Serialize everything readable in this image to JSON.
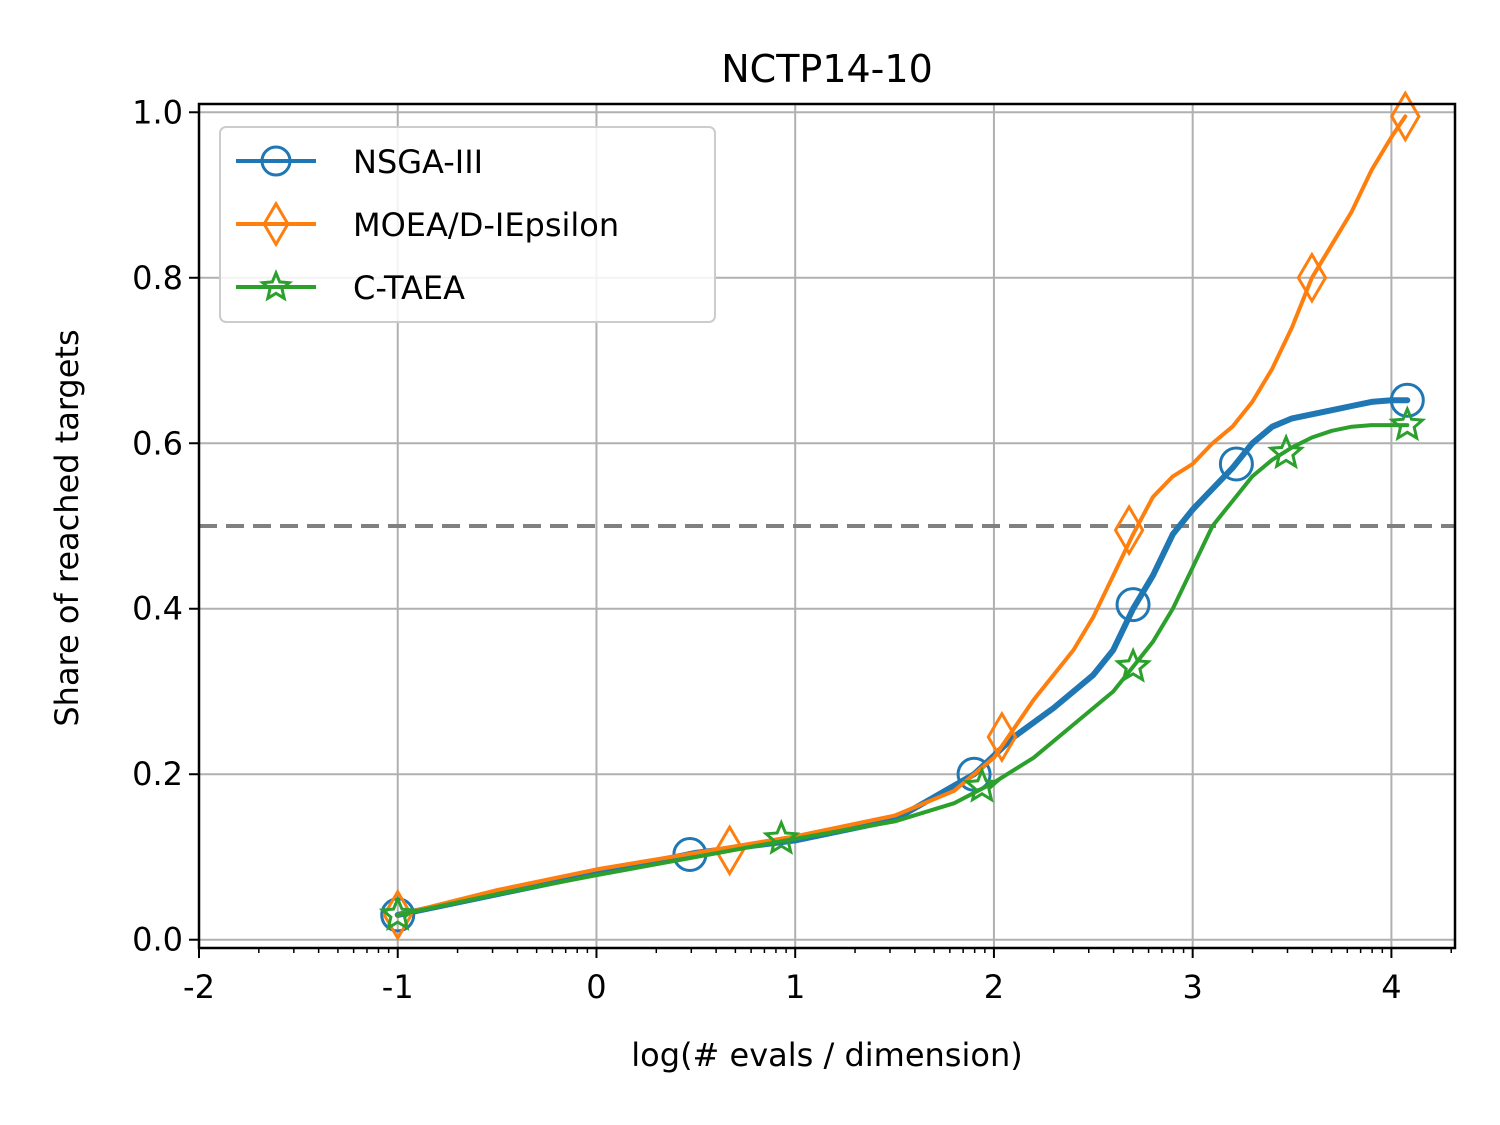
{
  "chart_data": {
    "type": "line",
    "title": "NCTP14-10",
    "xlabel": "log(# evals / dimension)",
    "ylabel": "Share of reached targets",
    "xlim": [
      -2,
      4.32
    ],
    "ylim": [
      -0.01,
      1.01
    ],
    "x_scale": "log10 exponent",
    "xticks": [
      -2,
      -1,
      0,
      1,
      2,
      3,
      4
    ],
    "xtick_labels": [
      "-2",
      "-1",
      "0",
      "1",
      "2",
      "3",
      "4"
    ],
    "yticks": [
      0.0,
      0.2,
      0.4,
      0.6,
      0.8,
      1.0
    ],
    "ytick_labels": [
      "0.0",
      "0.2",
      "0.4",
      "0.6",
      "0.8",
      "1.0"
    ],
    "grid": true,
    "legend_position": "top-left",
    "reference_line": {
      "y": 0.5,
      "style": "dashed",
      "color": "#808080"
    },
    "series": [
      {
        "name": "NSGA-III",
        "color": "#1f77b4",
        "marker": "circle",
        "x": [
          -1.0,
          -0.5,
          0.0,
          0.5,
          1.0,
          1.5,
          1.9,
          2.1,
          2.3,
          2.5,
          2.6,
          2.7,
          2.8,
          2.9,
          3.0,
          3.1,
          3.2,
          3.3,
          3.4,
          3.5,
          3.6,
          3.7,
          3.8,
          3.9,
          4.0,
          4.08
        ],
        "y": [
          0.03,
          0.055,
          0.08,
          0.105,
          0.12,
          0.145,
          0.2,
          0.245,
          0.28,
          0.32,
          0.35,
          0.4,
          0.44,
          0.49,
          0.52,
          0.545,
          0.57,
          0.6,
          0.62,
          0.63,
          0.635,
          0.64,
          0.645,
          0.65,
          0.652,
          0.652
        ],
        "marker_points": [
          [
            -1.0,
            0.03
          ],
          [
            0.47,
            0.103
          ],
          [
            1.9,
            0.2
          ],
          [
            2.7,
            0.405
          ],
          [
            3.22,
            0.575
          ],
          [
            4.08,
            0.652
          ]
        ]
      },
      {
        "name": "MOEA/D-IEpsilon",
        "color": "#ff7f0e",
        "marker": "diamond",
        "x": [
          -1.0,
          -0.5,
          0.0,
          0.5,
          1.0,
          1.5,
          1.8,
          2.0,
          2.2,
          2.4,
          2.5,
          2.6,
          2.7,
          2.8,
          2.9,
          3.0,
          3.1,
          3.2,
          3.3,
          3.4,
          3.5,
          3.6,
          3.7,
          3.8,
          3.9,
          4.0,
          4.07
        ],
        "y": [
          0.03,
          0.06,
          0.085,
          0.105,
          0.125,
          0.15,
          0.18,
          0.22,
          0.29,
          0.35,
          0.39,
          0.44,
          0.49,
          0.535,
          0.56,
          0.575,
          0.6,
          0.62,
          0.65,
          0.69,
          0.74,
          0.8,
          0.84,
          0.88,
          0.93,
          0.97,
          0.995
        ],
        "marker_points": [
          [
            -1.0,
            0.03
          ],
          [
            0.67,
            0.108
          ],
          [
            2.04,
            0.245
          ],
          [
            2.68,
            0.495
          ],
          [
            3.6,
            0.8
          ],
          [
            4.07,
            0.995
          ]
        ]
      },
      {
        "name": "C-TAEA",
        "color": "#2ca02c",
        "marker": "star",
        "x": [
          -1.0,
          -0.5,
          0.0,
          0.5,
          1.0,
          1.5,
          1.8,
          2.0,
          2.2,
          2.4,
          2.6,
          2.7,
          2.8,
          2.9,
          3.0,
          3.1,
          3.2,
          3.3,
          3.4,
          3.5,
          3.6,
          3.7,
          3.8,
          3.9,
          4.0,
          4.08
        ],
        "y": [
          0.03,
          0.055,
          0.078,
          0.1,
          0.122,
          0.143,
          0.165,
          0.19,
          0.22,
          0.26,
          0.3,
          0.33,
          0.36,
          0.4,
          0.45,
          0.5,
          0.53,
          0.56,
          0.58,
          0.595,
          0.607,
          0.615,
          0.62,
          0.622,
          0.622,
          0.622
        ],
        "marker_points": [
          [
            -1.0,
            0.03
          ],
          [
            0.93,
            0.122
          ],
          [
            1.94,
            0.185
          ],
          [
            2.7,
            0.33
          ],
          [
            3.47,
            0.588
          ],
          [
            4.08,
            0.622
          ]
        ]
      }
    ]
  }
}
